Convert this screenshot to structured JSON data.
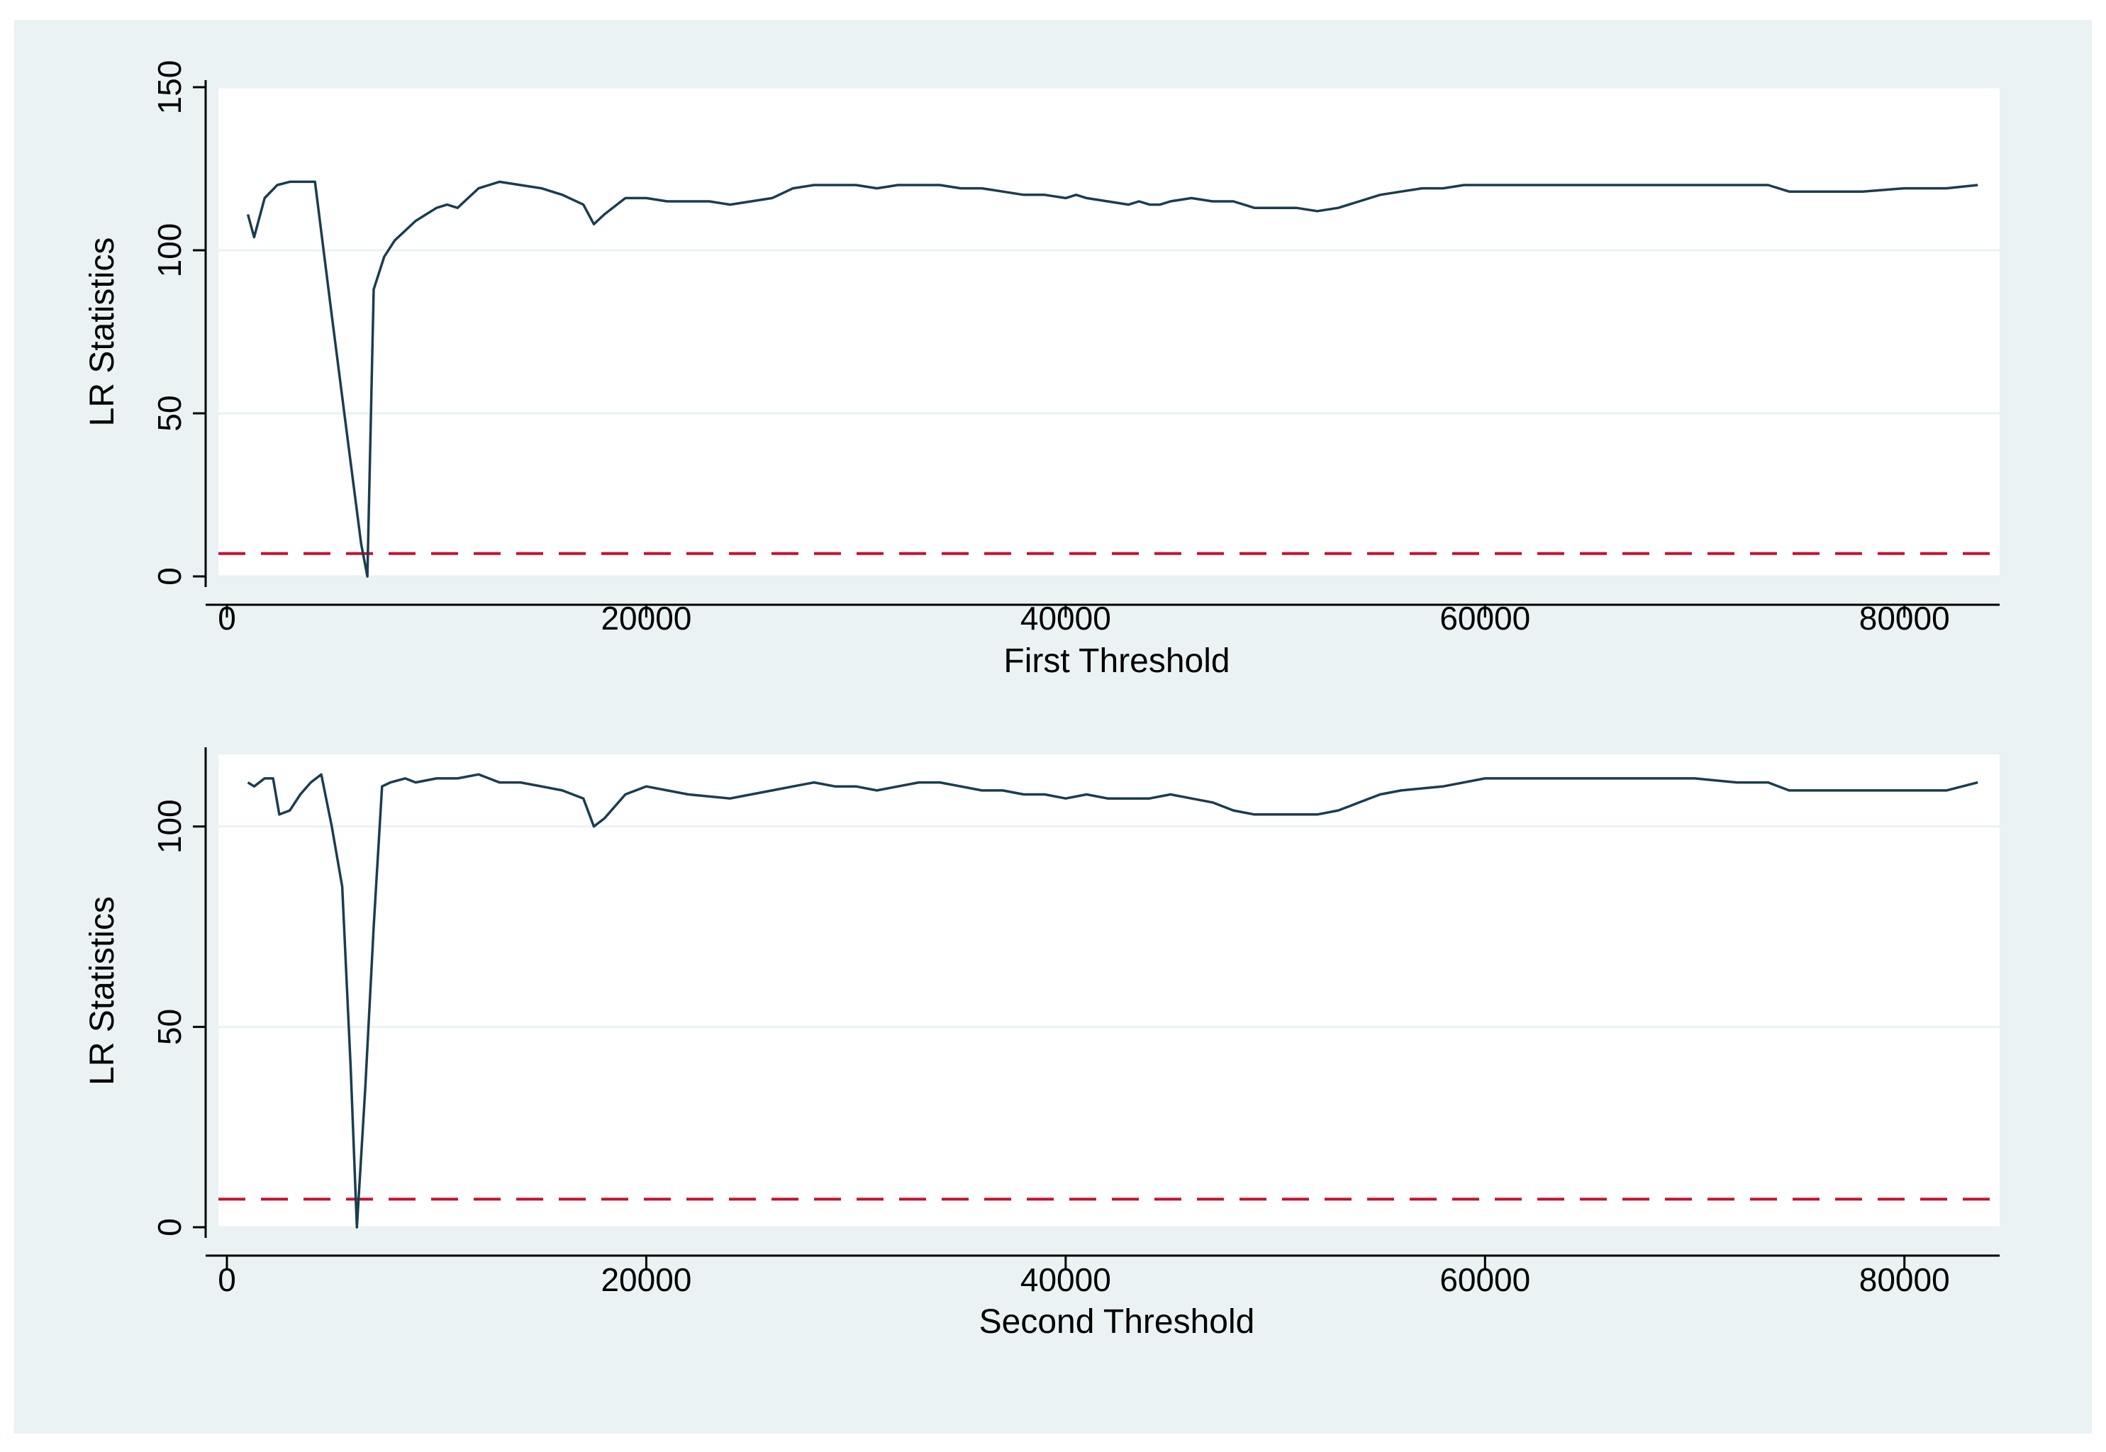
{
  "colors": {
    "outer_background": "#eaf2f3",
    "plot_background": "#ffffff",
    "line": "#1a3d4f",
    "threshold_line": "#c8102e",
    "gridline": "#eaf2f3"
  },
  "chart_data": [
    {
      "type": "line",
      "title": "",
      "xlabel": "First Threshold",
      "ylabel": "LR Statistics",
      "xlim": [
        0,
        84000
      ],
      "ylim": [
        0,
        150
      ],
      "xticks": [
        0,
        20000,
        40000,
        60000,
        80000
      ],
      "yticks": [
        0,
        50,
        100,
        150
      ],
      "grid": true,
      "critical_value": 7,
      "series": [
        {
          "x": [
            1000,
            1300,
            1800,
            2400,
            3000,
            3800,
            4200,
            5000,
            5800,
            6400,
            6700,
            7000,
            7500,
            8000,
            8500,
            9000,
            9500,
            10000,
            10500,
            11000,
            11500,
            12000,
            12500,
            13000,
            14000,
            15000,
            16000,
            17000,
            17500,
            18000,
            19000,
            20000,
            21000,
            22000,
            23000,
            24000,
            25000,
            26000,
            27000,
            28000,
            29000,
            30000,
            31000,
            32000,
            33000,
            34000,
            35000,
            36000,
            37000,
            38000,
            39000,
            40000,
            40500,
            41000,
            42000,
            43000,
            43500,
            44000,
            44500,
            45000,
            46000,
            47000,
            48000,
            49000,
            50000,
            51000,
            52000,
            53000,
            54000,
            55000,
            56000,
            57000,
            58000,
            59000,
            60000,
            62000,
            64000,
            66000,
            68000,
            70000,
            72000,
            73500,
            74500,
            76000,
            78000,
            80000,
            82000,
            83500
          ],
          "y": [
            111,
            104,
            116,
            120,
            121,
            121,
            121,
            80,
            40,
            10,
            0,
            88,
            98,
            103,
            106,
            109,
            111,
            113,
            114,
            113,
            116,
            119,
            120,
            121,
            120,
            119,
            117,
            114,
            108,
            111,
            116,
            116,
            115,
            115,
            115,
            114,
            115,
            116,
            119,
            120,
            120,
            120,
            119,
            120,
            120,
            120,
            119,
            119,
            118,
            117,
            117,
            116,
            117,
            116,
            115,
            114,
            115,
            114,
            114,
            115,
            116,
            115,
            115,
            113,
            113,
            113,
            112,
            113,
            115,
            117,
            118,
            119,
            119,
            120,
            120,
            120,
            120,
            120,
            120,
            120,
            120,
            120,
            118,
            118,
            118,
            119,
            119,
            120
          ]
        }
      ]
    },
    {
      "type": "line",
      "title": "",
      "xlabel": "Second Threshold",
      "ylabel": "LR Statistics",
      "xlim": [
        0,
        84000
      ],
      "ylim": [
        0,
        118
      ],
      "xticks": [
        0,
        20000,
        40000,
        60000,
        80000
      ],
      "yticks": [
        0,
        50,
        100
      ],
      "grid": true,
      "critical_value": 7,
      "series": [
        {
          "x": [
            1000,
            1300,
            1800,
            2200,
            2500,
            3000,
            3500,
            4000,
            4500,
            5000,
            5500,
            5900,
            6200,
            6600,
            7000,
            7400,
            7800,
            8500,
            9000,
            10000,
            11000,
            12000,
            13000,
            14000,
            15000,
            16000,
            17000,
            17500,
            18000,
            19000,
            20000,
            22000,
            24000,
            25000,
            26000,
            27000,
            28000,
            29000,
            30000,
            31000,
            32000,
            33000,
            34000,
            35000,
            36000,
            37000,
            38000,
            39000,
            40000,
            41000,
            42000,
            43000,
            44000,
            45000,
            46000,
            47000,
            48000,
            49000,
            50000,
            51000,
            52000,
            53000,
            54000,
            55000,
            56000,
            58000,
            60000,
            62000,
            64000,
            66000,
            68000,
            70000,
            72000,
            73500,
            74500,
            76000,
            78000,
            80000,
            82000,
            83500
          ],
          "y": [
            111,
            110,
            112,
            112,
            103,
            104,
            108,
            111,
            113,
            100,
            85,
            40,
            0,
            35,
            75,
            110,
            111,
            112,
            111,
            112,
            112,
            113,
            111,
            111,
            110,
            109,
            107,
            100,
            102,
            108,
            110,
            108,
            107,
            108,
            109,
            110,
            111,
            110,
            110,
            109,
            110,
            111,
            111,
            110,
            109,
            109,
            108,
            108,
            107,
            108,
            107,
            107,
            107,
            108,
            107,
            106,
            104,
            103,
            103,
            103,
            103,
            104,
            106,
            108,
            109,
            110,
            112,
            112,
            112,
            112,
            112,
            112,
            111,
            111,
            109,
            109,
            109,
            109,
            109,
            111
          ]
        }
      ]
    }
  ]
}
